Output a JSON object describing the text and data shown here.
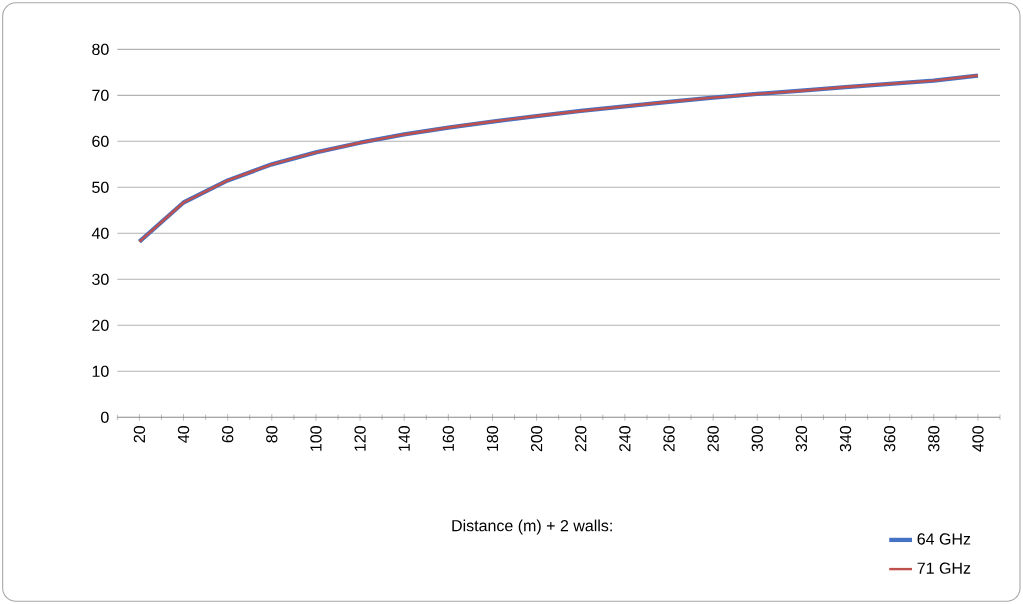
{
  "chart_data": {
    "type": "line",
    "xlabel": "Distance (m) + 2 walls:",
    "categories": [
      "20",
      "40",
      "60",
      "80",
      "100",
      "120",
      "140",
      "160",
      "180",
      "200",
      "220",
      "240",
      "260",
      "280",
      "300",
      "320",
      "340",
      "360",
      "380",
      "400"
    ],
    "series": [
      {
        "name": "64 GHz",
        "color": "#4472c4",
        "values": [
          38.2,
          46.7,
          51.5,
          55,
          57.6,
          59.7,
          61.5,
          63,
          64.3,
          65.5,
          66.6,
          67.6,
          68.6,
          69.5,
          70.3,
          71,
          71.8,
          72.5,
          73.2,
          74.3
        ]
      },
      {
        "name": "71 GHz",
        "color": "#c0504d",
        "values": [
          38.2,
          46.7,
          51.5,
          55,
          57.6,
          59.7,
          61.5,
          63,
          64.3,
          65.5,
          66.6,
          67.6,
          68.6,
          69.5,
          70.3,
          71,
          71.8,
          72.5,
          73.2,
          74.3
        ]
      }
    ],
    "ylim": [
      0,
      80
    ],
    "yticks": [
      0,
      10,
      20,
      30,
      40,
      50,
      60,
      70,
      80
    ],
    "grid": "y",
    "legend": "bottom right"
  }
}
